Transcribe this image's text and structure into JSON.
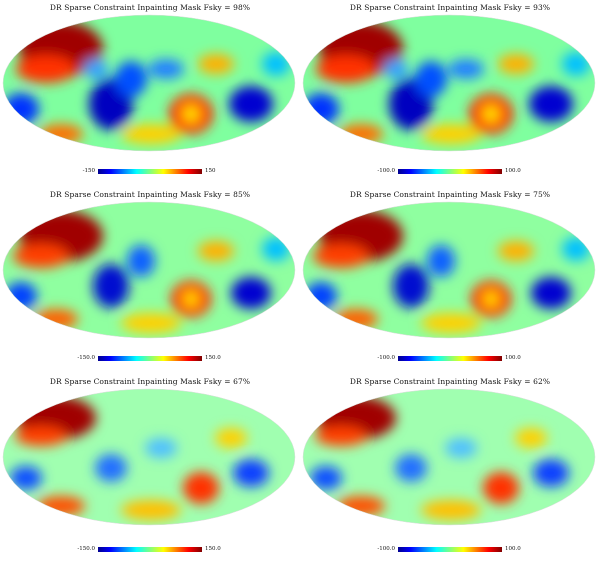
{
  "panels": [
    {
      "title": "DR Sparse Constraint Inpainting Mask Fsky = 98%",
      "cmin": "-150",
      "cmax": "150"
    },
    {
      "title": "DR Sparse Constraint Inpainting Mask Fsky = 93%",
      "cmin": "-100.0",
      "cmax": "100.0"
    },
    {
      "title": "DR Sparse Constraint Inpainting Mask Fsky = 85%",
      "cmin": "-150.0",
      "cmax": "150.0"
    },
    {
      "title": "DR Sparse Constraint Inpainting Mask Fsky = 75%",
      "cmin": "-100.0",
      "cmax": "100.0"
    },
    {
      "title": "DR Sparse Constraint Inpainting Mask Fsky = 67%",
      "cmin": "-150.0",
      "cmax": "150.0"
    },
    {
      "title": "DR Sparse Constraint Inpainting Mask Fsky = 62%",
      "cmin": "-100.0",
      "cmax": "100.0"
    }
  ],
  "colors": {
    "scale": [
      "#00008f",
      "#0000ff",
      "#00ffff",
      "#ffff00",
      "#ff0000",
      "#800000"
    ],
    "background": "#ffffff"
  }
}
